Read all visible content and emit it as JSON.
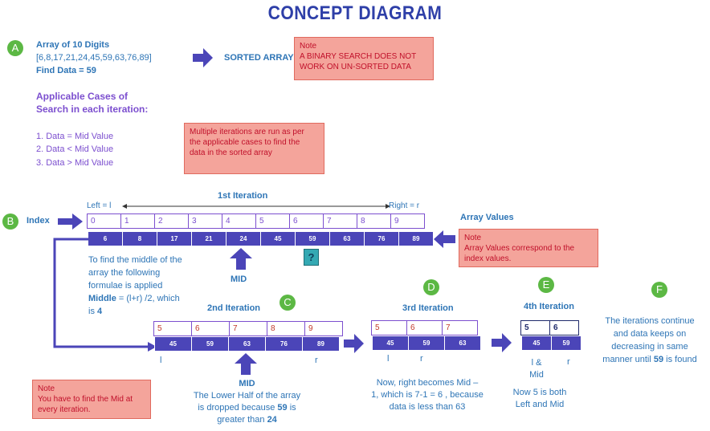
{
  "title": "CONCEPT DIAGRAM",
  "markers": {
    "a": "A",
    "b": "B",
    "c": "C",
    "d": "D",
    "e": "E",
    "f": "F"
  },
  "section_a": {
    "line1": "Array of 10 Digits",
    "line2": "[6,8,17,21,24,45,59,63,76,89]",
    "line3": "Find Data = 59",
    "sorted": "SORTED ARRAY",
    "cases_title1": "Applicable Cases of",
    "cases_title2": "Search in each iteration:",
    "cases": [
      "1.   Data = Mid Value",
      "2.   Data < Mid Value",
      "3.   Data > Mid Value"
    ]
  },
  "note1": {
    "head": "Note",
    "l1": "A BINARY SEARCH DOES NOT",
    "l2": "WORK ON UN-SORTED DATA"
  },
  "note2": {
    "l1": "Multiple iterations are run as per",
    "l2": "the applicable cases to find the",
    "l3": "data in the sorted array"
  },
  "iter1": {
    "label": "1st Iteration",
    "left": "Left = l",
    "right": "Right = r",
    "index_label": "Index",
    "array_values_label": "Array Values",
    "indices": [
      "0",
      "1",
      "2",
      "3",
      "4",
      "5",
      "6",
      "7",
      "8",
      "9"
    ],
    "values": [
      "6",
      "8",
      "17",
      "21",
      "24",
      "45",
      "59",
      "63",
      "76",
      "89"
    ],
    "question": "?",
    "mid": "MID"
  },
  "note3": {
    "head": "Note",
    "l1": "Array Values correspond to the",
    "l2": "index values."
  },
  "explain1": {
    "l1": "To find the middle of the",
    "l2": "array the following",
    "l3": "formulae is applied",
    "l4b": "Middle",
    "l4": " = (l+r) /2, which",
    "l5": "is ",
    "l5b": "4"
  },
  "iter2": {
    "label": "2nd Iteration",
    "indices": [
      "5",
      "6",
      "7",
      "8",
      "9"
    ],
    "values": [
      "45",
      "59",
      "63",
      "76",
      "89"
    ],
    "l": "l",
    "r": "r",
    "mid": "MID",
    "e1": "The Lower Half of the array",
    "e2a": "is dropped because ",
    "e2b": "59",
    "e2c": " is",
    "e3a": "greater than ",
    "e3b": "24"
  },
  "iter3": {
    "label": "3rd Iteration",
    "indices": [
      "5",
      "6",
      "7"
    ],
    "values": [
      "45",
      "59",
      "63"
    ],
    "l": "l",
    "r": "r",
    "e1": "Now, right becomes Mid –",
    "e2": "1, which is 7-1 = 6 , because",
    "e3": "data is less than 63"
  },
  "iter4": {
    "label": "4th Iteration",
    "indices": [
      "5",
      "6"
    ],
    "values": [
      "45",
      "59"
    ],
    "lm1": "l &",
    "lm2": "Mid",
    "r": "r",
    "e1": "Now 5 is both",
    "e2": "Left and Mid"
  },
  "section_f": {
    "l1": "The iterations continue",
    "l2": "and data keeps on",
    "l3": "decreasing in same",
    "l4a": "manner until ",
    "l4b": "59",
    "l4c": " is found"
  },
  "note4": {
    "head": "Note",
    "l1": "You have to find the Mid at",
    "l2": "every iteration."
  },
  "colors": {
    "title": "#2e3fa8",
    "arrow": "#4b45b8",
    "cell": "#4b45b8",
    "green": "#5cb844",
    "note_bg": "#f4a49b",
    "note_text": "#c0102a",
    "red_index": "#c0392b"
  }
}
